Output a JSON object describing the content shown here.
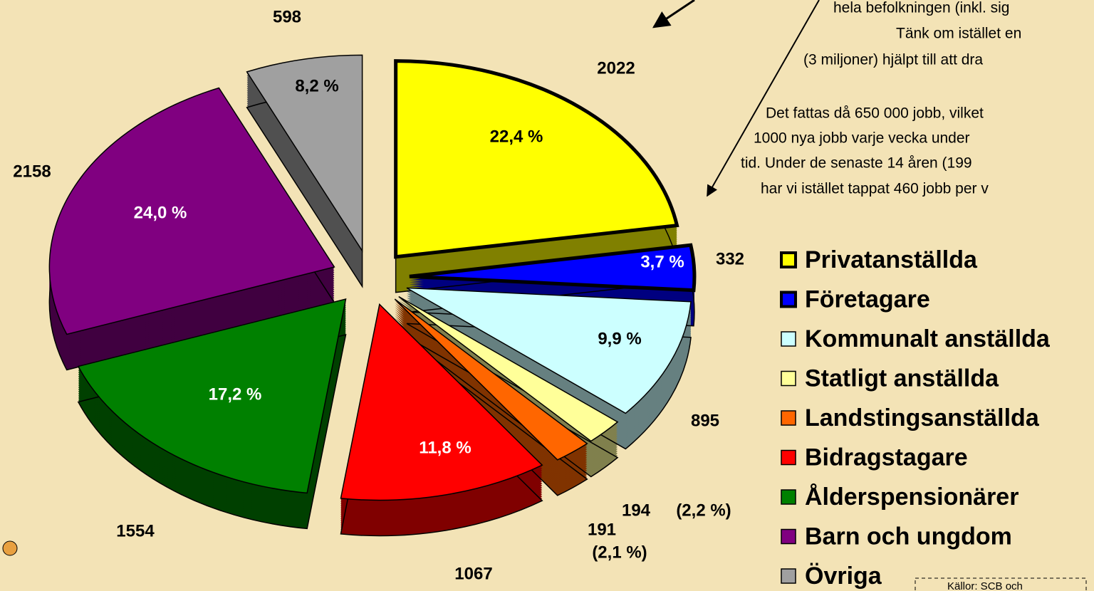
{
  "chart_data": {
    "type": "pie",
    "categories": [
      "Privatanställda",
      "Företagare",
      "Kommunalt anställda",
      "Statligt anställda",
      "Landstingsanställda",
      "Bidragstagare",
      "Ålderspensionärer",
      "Barn och ungdom",
      "Övriga"
    ],
    "values": [
      2022,
      332,
      895,
      194,
      191,
      1067,
      1554,
      2158,
      598
    ],
    "percents": [
      22.4,
      3.7,
      9.9,
      2.2,
      2.1,
      11.8,
      17.2,
      24.0,
      8.2
    ],
    "percent_labels": [
      "22,4 %",
      "3,7 %",
      "9,9 %",
      "(2,2 %)",
      "(2,1 %)",
      "11,8 %",
      "17,2 %",
      "24,0 %",
      "8,2 %"
    ],
    "colors": [
      "#ffff00",
      "#0000ff",
      "#ccffff",
      "#ffff99",
      "#ff6600",
      "#ff0000",
      "#008000",
      "#800080",
      "#a0a0a0"
    ],
    "annotations": [
      "hela befolkningen (inkl. sig",
      "Tänk om istället en",
      "(3 miljoner) hjälpt till att dra",
      "Det fattas då 650 000 jobb, vilket",
      "1000 nya jobb varje vecka under",
      "tid. Under de senaste 14 åren (199",
      "har vi istället tappat 460 jobb per v"
    ],
    "source": "Källor: SCB och",
    "legend": "right"
  }
}
